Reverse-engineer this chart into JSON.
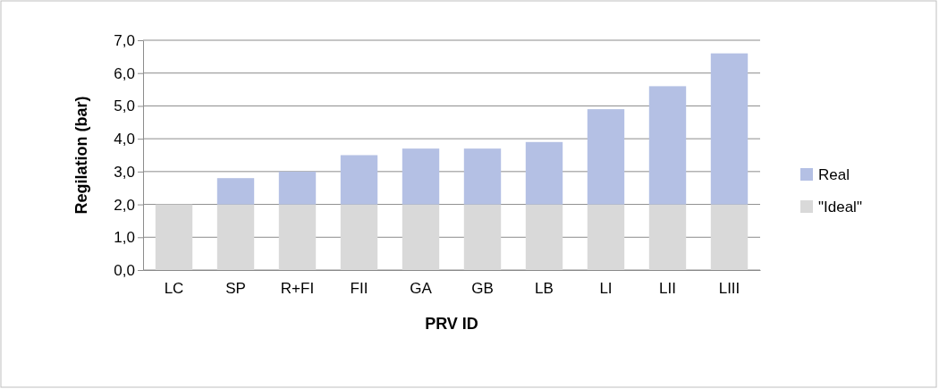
{
  "chart_data": {
    "type": "bar",
    "stacked": true,
    "xlabel": "PRV ID",
    "ylabel": "Regilation (bar)",
    "categories": [
      "LC",
      "SP",
      "R+FI",
      "FII",
      "GA",
      "GB",
      "LB",
      "LI",
      "LII",
      "LIII"
    ],
    "series": [
      {
        "name": "\"Ideal\"",
        "color": "#d9d9d9",
        "values": [
          2.0,
          2.0,
          2.0,
          2.0,
          2.0,
          2.0,
          2.0,
          2.0,
          2.0,
          2.0
        ]
      },
      {
        "name": "Real",
        "color": "#b4c0e4",
        "values": [
          0,
          0.8,
          1.0,
          1.5,
          1.7,
          1.7,
          1.9,
          2.9,
          3.6,
          4.6
        ]
      }
    ],
    "ylim": [
      0,
      7
    ],
    "yticks": [
      {
        "value": 0,
        "label": "0,0"
      },
      {
        "value": 1,
        "label": "1,0"
      },
      {
        "value": 2,
        "label": "2,0"
      },
      {
        "value": 3,
        "label": "3,0"
      },
      {
        "value": 4,
        "label": "4,0"
      },
      {
        "value": 5,
        "label": "5,0"
      },
      {
        "value": 6,
        "label": "6,0"
      },
      {
        "value": 7,
        "label": "7,0"
      }
    ],
    "grid": "y",
    "legend": "right"
  }
}
